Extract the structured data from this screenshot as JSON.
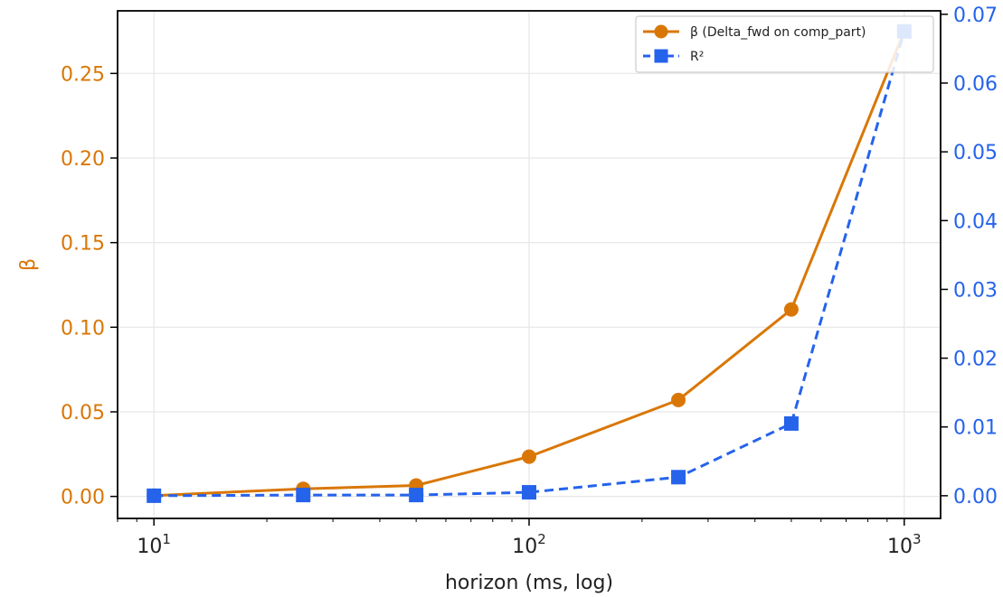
{
  "chart_data": {
    "type": "line",
    "xlabel": "horizon (ms, log)",
    "ylabel": "β",
    "xscale": "log",
    "xlim": [
      8,
      1250
    ],
    "ylim_left": [
      -0.013,
      0.287
    ],
    "ylim_right": [
      -0.0033,
      0.0705
    ],
    "x": [
      10,
      25,
      50,
      100,
      250,
      500,
      1000
    ],
    "x_ticks": [
      {
        "value": 10,
        "base": "10",
        "exp": "1"
      },
      {
        "value": 100,
        "base": "10",
        "exp": "2"
      },
      {
        "value": 1000,
        "base": "10",
        "exp": "3"
      }
    ],
    "y_ticks_left": [
      {
        "value": 0.0,
        "label": "0.00"
      },
      {
        "value": 0.05,
        "label": "0.05"
      },
      {
        "value": 0.1,
        "label": "0.10"
      },
      {
        "value": 0.15,
        "label": "0.15"
      },
      {
        "value": 0.2,
        "label": "0.20"
      },
      {
        "value": 0.25,
        "label": "0.25"
      }
    ],
    "y_ticks_right": [
      {
        "value": 0.0,
        "label": "0.00"
      },
      {
        "value": 0.01,
        "label": "0.01"
      },
      {
        "value": 0.02,
        "label": "0.02"
      },
      {
        "value": 0.03,
        "label": "0.03"
      },
      {
        "value": 0.04,
        "label": "0.04"
      },
      {
        "value": 0.05,
        "label": "0.05"
      },
      {
        "value": 0.06,
        "label": "0.06"
      },
      {
        "value": 0.07,
        "label": "0.07"
      }
    ],
    "series": [
      {
        "name": "β (Delta_fwd on comp_part)",
        "axis": "left",
        "color": "#d97706",
        "marker": "circle",
        "linestyle": "solid",
        "values": [
          0.0005,
          0.0045,
          0.0065,
          0.0235,
          0.057,
          0.1105,
          0.275
        ]
      },
      {
        "name": "R²",
        "axis": "right",
        "color": "#2563eb",
        "marker": "square",
        "linestyle": "dashed",
        "values": [
          0.0,
          0.0001,
          0.0001,
          0.0005,
          0.0027,
          0.0105,
          0.0675
        ]
      }
    ],
    "grid": true,
    "legend": "top-right"
  }
}
